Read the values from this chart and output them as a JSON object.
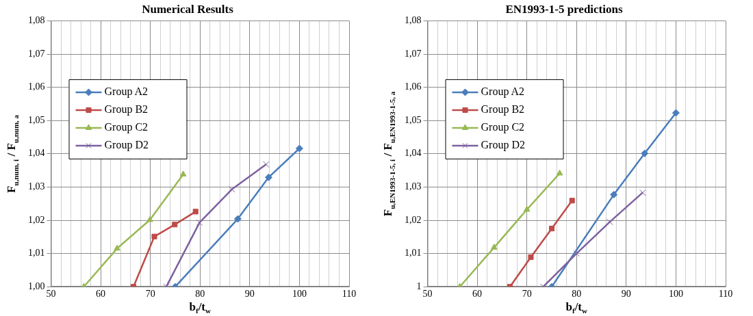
{
  "chart_data": [
    {
      "type": "line",
      "title": "Numerical Results",
      "xlabel": "b$_{f}$/t$_{w}$",
      "ylabel": "F$_{u,num, i}$  / F$_{u,num, a}$",
      "xlim": [
        50,
        110
      ],
      "xticks": [
        50,
        {
          "value": 52,
          "label": null
        },
        {
          "value": 54,
          "label": null
        },
        {
          "value": 56,
          "label": null
        },
        {
          "value": 58,
          "label": null
        },
        60,
        {
          "value": 62,
          "label": null
        },
        {
          "value": 64,
          "label": null
        },
        {
          "value": 66,
          "label": null
        },
        {
          "value": 68,
          "label": null
        },
        70,
        {
          "value": 72,
          "label": null
        },
        {
          "value": 74,
          "label": null
        },
        {
          "value": 76,
          "label": null
        },
        {
          "value": 78,
          "label": null
        },
        80,
        {
          "value": 82,
          "label": null
        },
        {
          "value": 84,
          "label": null
        },
        {
          "value": 86,
          "label": null
        },
        {
          "value": 88,
          "label": null
        },
        90,
        {
          "value": 92,
          "label": null
        },
        {
          "value": 94,
          "label": null
        },
        {
          "value": 96,
          "label": null
        },
        {
          "value": 98,
          "label": null
        },
        100,
        {
          "value": 102,
          "label": null
        },
        {
          "value": 104,
          "label": null
        },
        {
          "value": 106,
          "label": null
        },
        {
          "value": 108,
          "label": null
        },
        110
      ],
      "ylim": [
        1.0,
        1.08
      ],
      "yticks": [
        {
          "value": 1.0,
          "label": "1,00"
        },
        {
          "value": 1.01,
          "label": "1,01"
        },
        {
          "value": 1.02,
          "label": "1,02"
        },
        {
          "value": 1.03,
          "label": "1,03"
        },
        {
          "value": 1.04,
          "label": "1,04"
        },
        {
          "value": 1.05,
          "label": "1,05"
        },
        {
          "value": 1.06,
          "label": "1,06"
        },
        {
          "value": 1.07,
          "label": "1,07"
        },
        {
          "value": 1.08,
          "label": "1,08"
        }
      ],
      "grid": true,
      "legend": "left",
      "line_style": "solid",
      "series": [
        {
          "name": "Group A2",
          "color": "#4a7ebb",
          "marker": "diamond",
          "x": [
            75.0,
            87.6,
            93.8,
            100
          ],
          "values": [
            1.0,
            1.0204,
            1.0329,
            1.0416
          ]
        },
        {
          "name": "Group B2",
          "color": "#be4b48",
          "marker": "square",
          "x": [
            66.6,
            70.8,
            74.9,
            79.1
          ],
          "values": [
            1.0,
            1.0151,
            1.0187,
            1.0226
          ]
        },
        {
          "name": "Group C2",
          "color": "#98b954",
          "marker": "triangle",
          "x": [
            56.6,
            63.3,
            69.9,
            76.6
          ],
          "values": [
            1.0,
            1.0115,
            1.0201,
            1.0338
          ]
        },
        {
          "name": "Group D2",
          "color": "#7d60a0",
          "marker": "cross",
          "x": [
            73.2,
            79.9,
            86.4,
            93.3
          ],
          "values": [
            1.0,
            1.0193,
            1.0293,
            1.0368
          ]
        }
      ]
    },
    {
      "type": "line",
      "title": "EN1993-1-5 predictions",
      "xlabel": "b$_{f}$/t$_{w}$",
      "ylabel": "F$_{u,EN1993-1-5, i}$  / F$_{u,EN1993-1-5, a}$",
      "xlim": [
        50,
        110
      ],
      "xticks": [
        50,
        {
          "value": 52,
          "label": null
        },
        {
          "value": 54,
          "label": null
        },
        {
          "value": 56,
          "label": null
        },
        {
          "value": 58,
          "label": null
        },
        60,
        {
          "value": 62,
          "label": null
        },
        {
          "value": 64,
          "label": null
        },
        {
          "value": 66,
          "label": null
        },
        {
          "value": 68,
          "label": null
        },
        70,
        {
          "value": 72,
          "label": null
        },
        {
          "value": 74,
          "label": null
        },
        {
          "value": 76,
          "label": null
        },
        {
          "value": 78,
          "label": null
        },
        80,
        {
          "value": 82,
          "label": null
        },
        {
          "value": 84,
          "label": null
        },
        {
          "value": 86,
          "label": null
        },
        {
          "value": 88,
          "label": null
        },
        90,
        {
          "value": 92,
          "label": null
        },
        {
          "value": 94,
          "label": null
        },
        {
          "value": 96,
          "label": null
        },
        {
          "value": 98,
          "label": null
        },
        100,
        {
          "value": 102,
          "label": null
        },
        {
          "value": 104,
          "label": null
        },
        {
          "value": 106,
          "label": null
        },
        {
          "value": 108,
          "label": null
        },
        110
      ],
      "ylim": [
        1.0,
        1.08
      ],
      "yticks": [
        1,
        {
          "value": 1.01,
          "label": "1,01"
        },
        {
          "value": 1.02,
          "label": "1,02"
        },
        {
          "value": 1.03,
          "label": "1,03"
        },
        {
          "value": 1.04,
          "label": "1,04"
        },
        {
          "value": 1.05,
          "label": "1,05"
        },
        {
          "value": 1.06,
          "label": "1,06"
        },
        {
          "value": 1.07,
          "label": "1,07"
        },
        {
          "value": 1.08,
          "label": "1,08"
        }
      ],
      "grid": true,
      "legend": "left",
      "line_style": "solid",
      "series": [
        {
          "name": "Group A2",
          "color": "#4a7ebb",
          "marker": "diamond",
          "x": [
            75.0,
            87.5,
            93.7,
            100
          ],
          "values": [
            1.0,
            1.0277,
            1.0401,
            1.0523
          ]
        },
        {
          "name": "Group B2",
          "color": "#be4b48",
          "marker": "square",
          "x": [
            66.6,
            70.8,
            75.0,
            79.1
          ],
          "values": [
            1.0,
            1.0089,
            1.0175,
            1.0259
          ]
        },
        {
          "name": "Group C2",
          "color": "#98b954",
          "marker": "triangle",
          "x": [
            56.5,
            63.4,
            70.0,
            76.6
          ],
          "values": [
            1.0,
            1.0118,
            1.0232,
            1.0341
          ]
        },
        {
          "name": "Group D2",
          "color": "#7d60a0",
          "marker": "cross",
          "x": [
            73.3,
            80.0,
            86.7,
            93.3
          ],
          "values": [
            1.0,
            1.01,
            1.0195,
            1.0283
          ]
        }
      ]
    }
  ]
}
